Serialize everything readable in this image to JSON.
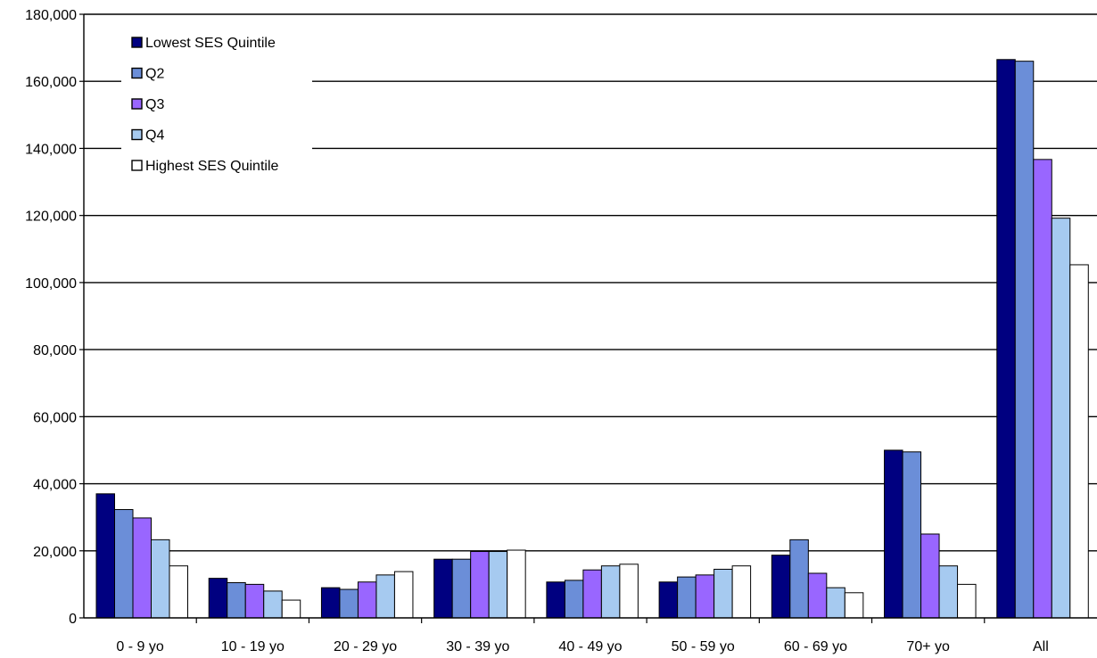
{
  "chart_data": {
    "type": "bar",
    "categories": [
      "0 - 9 yo",
      "10 - 19 yo",
      "20 - 29 yo",
      "30 - 39 yo",
      "40 - 49 yo",
      "50 - 59 yo",
      "60 - 69 yo",
      "70+ yo",
      "All"
    ],
    "series": [
      {
        "name": "Lowest SES Quintile",
        "color": "#000080",
        "values": [
          37000,
          11800,
          9000,
          17500,
          10700,
          10700,
          18700,
          50000,
          166500
        ]
      },
      {
        "name": "Q2",
        "color": "#6B8ED8",
        "values": [
          32300,
          10500,
          8500,
          17500,
          11200,
          12200,
          23300,
          49500,
          166000
        ]
      },
      {
        "name": "Q3",
        "color": "#9966FF",
        "values": [
          29800,
          10000,
          10700,
          19800,
          14300,
          12800,
          13300,
          25000,
          136700
        ]
      },
      {
        "name": "Q4",
        "color": "#A6CAF0",
        "values": [
          23300,
          8000,
          12800,
          19800,
          15500,
          14500,
          9000,
          15500,
          119200
        ]
      },
      {
        "name": "Highest SES Quintile",
        "color": "#FFFFFF",
        "values": [
          15500,
          5300,
          13800,
          20200,
          16000,
          15500,
          7500,
          10000,
          105300
        ]
      }
    ],
    "y_ticks": [
      "0",
      "20,000",
      "40,000",
      "60,000",
      "80,000",
      "100,000",
      "120,000",
      "140,000",
      "160,000",
      "180,000"
    ],
    "ylim": [
      0,
      180000
    ],
    "grid": true,
    "legend_position": "top-left"
  }
}
